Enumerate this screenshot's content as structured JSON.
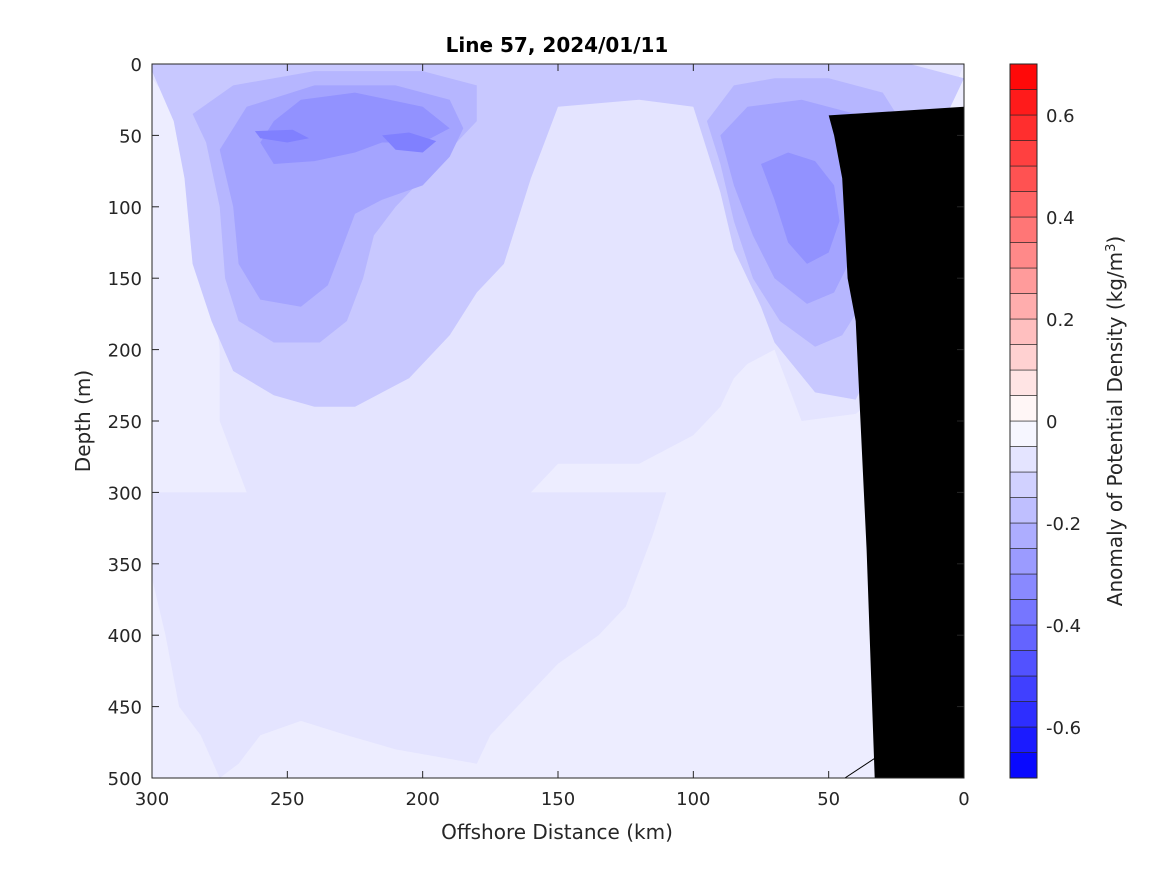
{
  "chart_data": {
    "type": "heatmap",
    "title": "Line 57, 2024/01/11",
    "xlabel": "Offshore Distance (km)",
    "ylabel": "Depth (m)",
    "colorbar_label": "Anomaly of Potential Density (kg/m",
    "colorbar_label_sup": "3",
    "colorbar_label_end": ")",
    "xlim": [
      300,
      0
    ],
    "ylim": [
      0,
      500
    ],
    "x_reversed": true,
    "y_reversed": true,
    "x_ticks": [
      300,
      250,
      200,
      150,
      100,
      50,
      0
    ],
    "y_ticks": [
      0,
      50,
      100,
      150,
      200,
      250,
      300,
      350,
      400,
      450,
      500
    ],
    "colorbar_range": [
      -0.7,
      0.7
    ],
    "colorbar_step": 0.05,
    "colorbar_ticks": [
      -0.6,
      -0.4,
      -0.2,
      0,
      0.2,
      0.4,
      0.6
    ],
    "colormap": "blue-white-red",
    "colors": {
      "negative_max": "#0000ff",
      "zero": "#ffffff",
      "positive_max": "#ff0000",
      "land": "#000000"
    },
    "contour_regions": [
      {
        "level": -0.1,
        "polygon": [
          [
            300,
            10
          ],
          [
            288,
            40
          ],
          [
            284,
            80
          ],
          [
            278,
            150
          ],
          [
            275,
            200
          ],
          [
            275,
            250
          ],
          [
            265,
            300
          ],
          [
            262,
            330
          ],
          [
            200,
            320
          ],
          [
            160,
            300
          ],
          [
            150,
            280
          ],
          [
            120,
            280
          ],
          [
            100,
            260
          ],
          [
            90,
            240
          ],
          [
            85,
            220
          ],
          [
            80,
            210
          ],
          [
            70,
            200
          ],
          [
            60,
            250
          ],
          [
            40,
            245
          ],
          [
            30,
            230
          ],
          [
            25,
            150
          ],
          [
            20,
            90
          ],
          [
            10,
            40
          ],
          [
            2,
            10
          ],
          [
            0,
            0
          ],
          [
            120,
            0
          ],
          [
            150,
            0
          ],
          [
            180,
            0
          ],
          [
            230,
            0
          ],
          [
            300,
            0
          ]
        ]
      },
      {
        "level": -0.1,
        "polygon": [
          [
            300,
            360
          ],
          [
            295,
            400
          ],
          [
            290,
            450
          ],
          [
            282,
            470
          ],
          [
            275,
            500
          ],
          [
            268,
            490
          ],
          [
            260,
            470
          ],
          [
            245,
            460
          ],
          [
            228,
            470
          ],
          [
            210,
            480
          ],
          [
            180,
            490
          ],
          [
            175,
            470
          ],
          [
            160,
            440
          ],
          [
            150,
            420
          ],
          [
            135,
            400
          ],
          [
            125,
            380
          ],
          [
            115,
            330
          ],
          [
            110,
            300
          ],
          [
            300,
            300
          ]
        ]
      },
      {
        "level": -0.15,
        "polygon": [
          [
            300,
            5
          ],
          [
            292,
            40
          ],
          [
            288,
            80
          ],
          [
            285,
            140
          ],
          [
            278,
            180
          ],
          [
            270,
            215
          ],
          [
            255,
            232
          ],
          [
            240,
            240
          ],
          [
            225,
            240
          ],
          [
            205,
            220
          ],
          [
            190,
            190
          ],
          [
            180,
            160
          ],
          [
            170,
            140
          ],
          [
            165,
            110
          ],
          [
            160,
            80
          ],
          [
            155,
            55
          ],
          [
            150,
            30
          ],
          [
            120,
            25
          ],
          [
            100,
            30
          ],
          [
            95,
            60
          ],
          [
            90,
            90
          ],
          [
            85,
            130
          ],
          [
            75,
            170
          ],
          [
            70,
            195
          ],
          [
            55,
            230
          ],
          [
            40,
            235
          ],
          [
            32,
            205
          ],
          [
            28,
            160
          ],
          [
            22,
            110
          ],
          [
            15,
            70
          ],
          [
            5,
            30
          ],
          [
            0,
            10
          ],
          [
            20,
            0
          ],
          [
            150,
            0
          ],
          [
            300,
            0
          ]
        ]
      },
      {
        "level": -0.2,
        "polygon": [
          [
            280,
            55
          ],
          [
            275,
            100
          ],
          [
            273,
            150
          ],
          [
            268,
            180
          ],
          [
            255,
            195
          ],
          [
            238,
            195
          ],
          [
            228,
            180
          ],
          [
            222,
            150
          ],
          [
            218,
            120
          ],
          [
            210,
            100
          ],
          [
            200,
            80
          ],
          [
            190,
            60
          ],
          [
            180,
            40
          ],
          [
            180,
            15
          ],
          [
            200,
            5
          ],
          [
            240,
            5
          ],
          [
            270,
            15
          ],
          [
            285,
            35
          ]
        ]
      },
      {
        "level": -0.2,
        "polygon": [
          [
            95,
            40
          ],
          [
            90,
            70
          ],
          [
            85,
            110
          ],
          [
            78,
            150
          ],
          [
            68,
            180
          ],
          [
            55,
            198
          ],
          [
            45,
            190
          ],
          [
            35,
            160
          ],
          [
            30,
            120
          ],
          [
            25,
            80
          ],
          [
            20,
            50
          ],
          [
            30,
            20
          ],
          [
            50,
            10
          ],
          [
            70,
            10
          ],
          [
            85,
            15
          ]
        ]
      },
      {
        "level": -0.25,
        "polygon": [
          [
            275,
            60
          ],
          [
            270,
            100
          ],
          [
            268,
            140
          ],
          [
            260,
            165
          ],
          [
            245,
            170
          ],
          [
            235,
            155
          ],
          [
            230,
            130
          ],
          [
            225,
            105
          ],
          [
            215,
            95
          ],
          [
            200,
            85
          ],
          [
            190,
            65
          ],
          [
            185,
            45
          ],
          [
            190,
            25
          ],
          [
            210,
            15
          ],
          [
            240,
            15
          ],
          [
            265,
            30
          ]
        ]
      },
      {
        "level": -0.25,
        "polygon": [
          [
            90,
            50
          ],
          [
            85,
            85
          ],
          [
            78,
            120
          ],
          [
            70,
            150
          ],
          [
            58,
            168
          ],
          [
            48,
            160
          ],
          [
            40,
            130
          ],
          [
            35,
            95
          ],
          [
            30,
            60
          ],
          [
            40,
            35
          ],
          [
            60,
            25
          ],
          [
            80,
            30
          ]
        ]
      },
      {
        "level": -0.3,
        "polygon": [
          [
            255,
            40
          ],
          [
            260,
            55
          ],
          [
            255,
            70
          ],
          [
            240,
            68
          ],
          [
            225,
            62
          ],
          [
            215,
            55
          ],
          [
            200,
            55
          ],
          [
            190,
            45
          ],
          [
            200,
            30
          ],
          [
            225,
            20
          ],
          [
            245,
            25
          ]
        ]
      },
      {
        "level": -0.3,
        "polygon": [
          [
            75,
            70
          ],
          [
            70,
            95
          ],
          [
            65,
            125
          ],
          [
            58,
            140
          ],
          [
            50,
            132
          ],
          [
            46,
            110
          ],
          [
            48,
            85
          ],
          [
            55,
            68
          ],
          [
            65,
            62
          ]
        ]
      },
      {
        "level": -0.35,
        "polygon": [
          [
            262,
            47
          ],
          [
            260,
            52
          ],
          [
            250,
            55
          ],
          [
            242,
            52
          ],
          [
            248,
            46
          ]
        ]
      },
      {
        "level": -0.35,
        "polygon": [
          [
            40,
            35
          ],
          [
            35,
            50
          ],
          [
            28,
            55
          ],
          [
            25,
            45
          ],
          [
            30,
            35
          ]
        ]
      },
      {
        "level": -0.35,
        "polygon": [
          [
            215,
            50
          ],
          [
            210,
            60
          ],
          [
            200,
            62
          ],
          [
            195,
            54
          ],
          [
            205,
            48
          ]
        ]
      }
    ],
    "land_polygon": [
      [
        33,
        500
      ],
      [
        36,
        340
      ],
      [
        40,
        180
      ],
      [
        43,
        150
      ],
      [
        45,
        80
      ],
      [
        48,
        50
      ],
      [
        50,
        36
      ],
      [
        0,
        30
      ],
      [
        0,
        500
      ]
    ],
    "contour_lines": [
      {
        "level": 0,
        "points": [
          [
            44,
            500
          ],
          [
            32,
            485
          ],
          [
            30,
            470
          ]
        ]
      },
      {
        "level": 0,
        "points": [
          [
            34,
            440
          ],
          [
            32,
            435
          ],
          [
            33,
            430
          ]
        ]
      }
    ]
  }
}
